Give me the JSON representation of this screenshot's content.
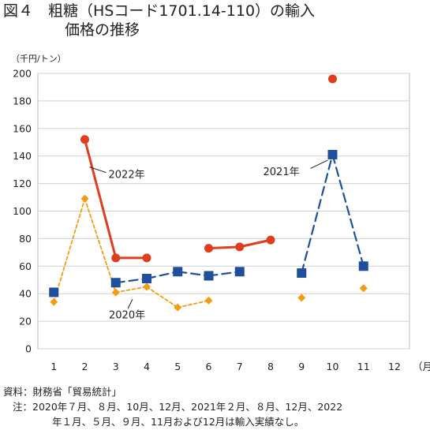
{
  "title": {
    "line1": "図４　粗糖（HSコード1701.14-110）の輸入",
    "line2": "価格の推移"
  },
  "unit_label": "（千円/トン）",
  "notes": {
    "source": "資料：財務省「貿易統計」",
    "note_line1": "注：2020年７月、８月、10月、12月、2021年２月、８月、12月、2022",
    "note_line2": "年１月、５月、９月、11月および12月は輸入実績なし。"
  },
  "chart_data": {
    "type": "line",
    "x": [
      1,
      2,
      3,
      4,
      5,
      6,
      7,
      8,
      9,
      10,
      11,
      12
    ],
    "xlabel": "（月）",
    "ylim": [
      0,
      200
    ],
    "yticks": [
      0,
      20,
      40,
      60,
      80,
      100,
      120,
      140,
      160,
      180,
      200
    ],
    "grid": true,
    "series": [
      {
        "name": "2020年",
        "color": "#f39c12",
        "style": "dotted",
        "marker": "diamond",
        "values": [
          34,
          109,
          41,
          45,
          30,
          35,
          null,
          null,
          37,
          null,
          44,
          null
        ]
      },
      {
        "name": "2021年",
        "color": "#1f4e9c",
        "style": "dashed",
        "marker": "square",
        "values": [
          41,
          null,
          48,
          51,
          56,
          53,
          56,
          null,
          55,
          141,
          60,
          null
        ]
      },
      {
        "name": "2022年",
        "color": "#e03c1e",
        "style": "solid",
        "marker": "circle",
        "values": [
          null,
          152,
          66,
          66,
          null,
          73,
          74,
          79,
          null,
          196,
          null,
          null
        ]
      }
    ]
  }
}
